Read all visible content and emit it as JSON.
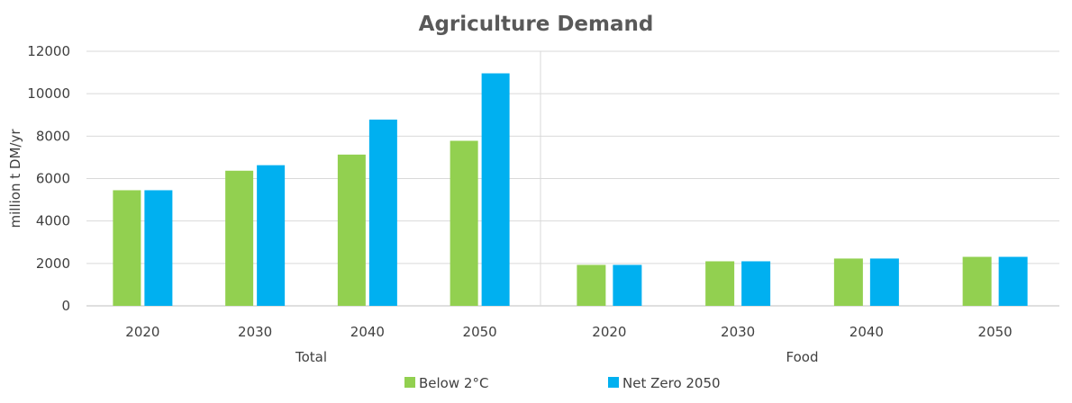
{
  "chart_data": {
    "type": "bar",
    "title": "Agriculture Demand",
    "ylabel": "million t DM/yr",
    "ylim": [
      0,
      12000
    ],
    "yticks": [
      0,
      2000,
      4000,
      6000,
      8000,
      10000,
      12000
    ],
    "grid": true,
    "legend_position": "bottom",
    "panels": [
      {
        "xlabel": "Total",
        "categories": [
          "2020",
          "2030",
          "2040",
          "2050"
        ],
        "series": [
          {
            "name": "Below 2°C",
            "values": [
              5450,
              6370,
              7130,
              7780
            ]
          },
          {
            "name": "Net Zero 2050",
            "values": [
              5450,
              6630,
              8780,
              10960
            ]
          }
        ]
      },
      {
        "xlabel": "Food",
        "categories": [
          "2020",
          "2030",
          "2040",
          "2050"
        ],
        "series": [
          {
            "name": "Below 2°C",
            "values": [
              1930,
              2100,
              2230,
              2310
            ]
          },
          {
            "name": "Net Zero 2050",
            "values": [
              1930,
              2100,
              2230,
              2310
            ]
          }
        ]
      }
    ],
    "colors": [
      "#92d050",
      "#00b0f0"
    ]
  }
}
